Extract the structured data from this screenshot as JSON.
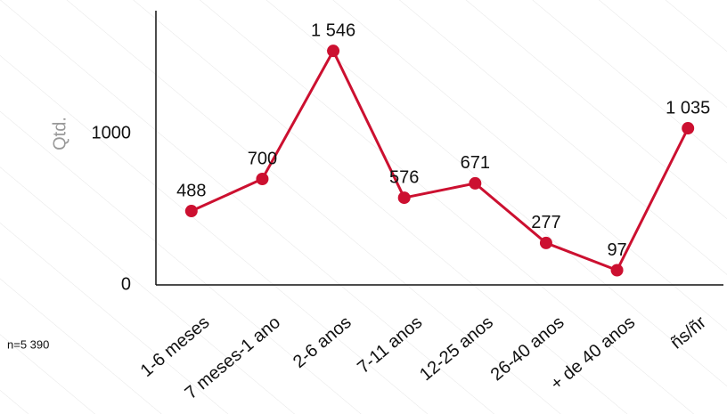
{
  "chart_data": {
    "type": "line",
    "y_label": "Qtd.",
    "note": "n=5 390",
    "categories": [
      "1-6 meses",
      "7 meses-1 ano",
      "2-6 anos",
      "7-11 anos",
      "12-25 anos",
      "26-40 anos",
      "+ de 40 anos",
      "ñs/ñr"
    ],
    "series": [
      {
        "name": "Qtd.",
        "color": "#cc1030",
        "values": [
          488,
          700,
          1546,
          576,
          671,
          277,
          97,
          1035
        ],
        "value_labels": [
          "488",
          "700",
          "1 546",
          "576",
          "671",
          "277",
          "97",
          "1 035"
        ]
      }
    ],
    "ylim": [
      0,
      1800
    ],
    "yticks": [
      0,
      1000
    ]
  }
}
